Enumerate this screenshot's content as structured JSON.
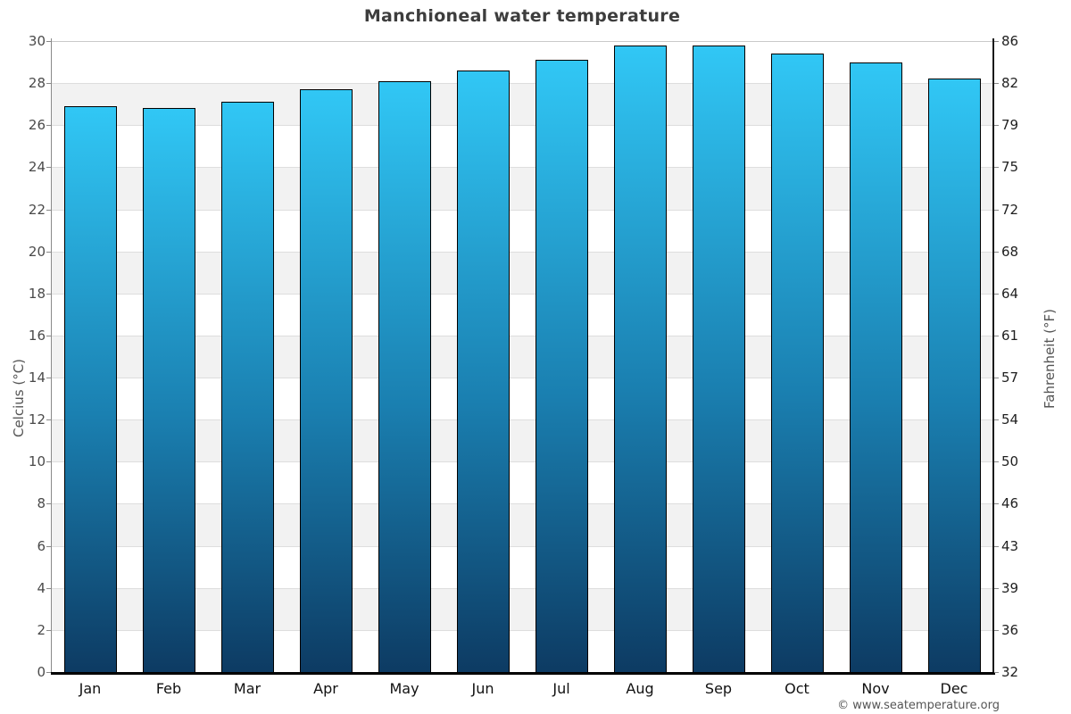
{
  "title": "Manchioneal water temperature",
  "watermark": "© www.seatemperature.org",
  "colors": {
    "bar_gradient_top": "#31c7f5",
    "bar_gradient_bottom": "#0d3b63",
    "bar_border": "#000000",
    "band_gray": "#f2f2f2",
    "band_white": "#ffffff",
    "title_text": "#3d3d3d",
    "axis_title_text": "#555555"
  },
  "chart_data": {
    "type": "bar",
    "title": "Manchioneal water temperature",
    "categories": [
      "Jan",
      "Feb",
      "Mar",
      "Apr",
      "May",
      "Jun",
      "Jul",
      "Aug",
      "Sep",
      "Oct",
      "Nov",
      "Dec"
    ],
    "series": [
      {
        "name": "Water temperature (°C)",
        "values": [
          26.9,
          26.8,
          27.1,
          27.7,
          28.1,
          28.6,
          29.1,
          29.8,
          29.8,
          29.4,
          29.0,
          28.2
        ]
      }
    ],
    "xlabel": "",
    "ylabel_left": "Celcius (°C)",
    "ylabel_right": "Fahrenheit (°F)",
    "ylim_left": [
      0,
      30
    ],
    "ytick_step_c": 2,
    "yticks_left_labels": [
      "30",
      "28",
      "26",
      "24",
      "22",
      "20",
      "18",
      "16",
      "14",
      "12",
      "10",
      "8",
      "6",
      "4",
      "2",
      "0"
    ],
    "yticks_right_labels": [
      "86",
      "82",
      "79",
      "75",
      "72",
      "68",
      "64",
      "61",
      "57",
      "54",
      "50",
      "46",
      "43",
      "39",
      "36",
      "32"
    ],
    "grid": "horizontal alternating 2°C bands, light gray / white, with thin gridlines",
    "legend": "none"
  }
}
